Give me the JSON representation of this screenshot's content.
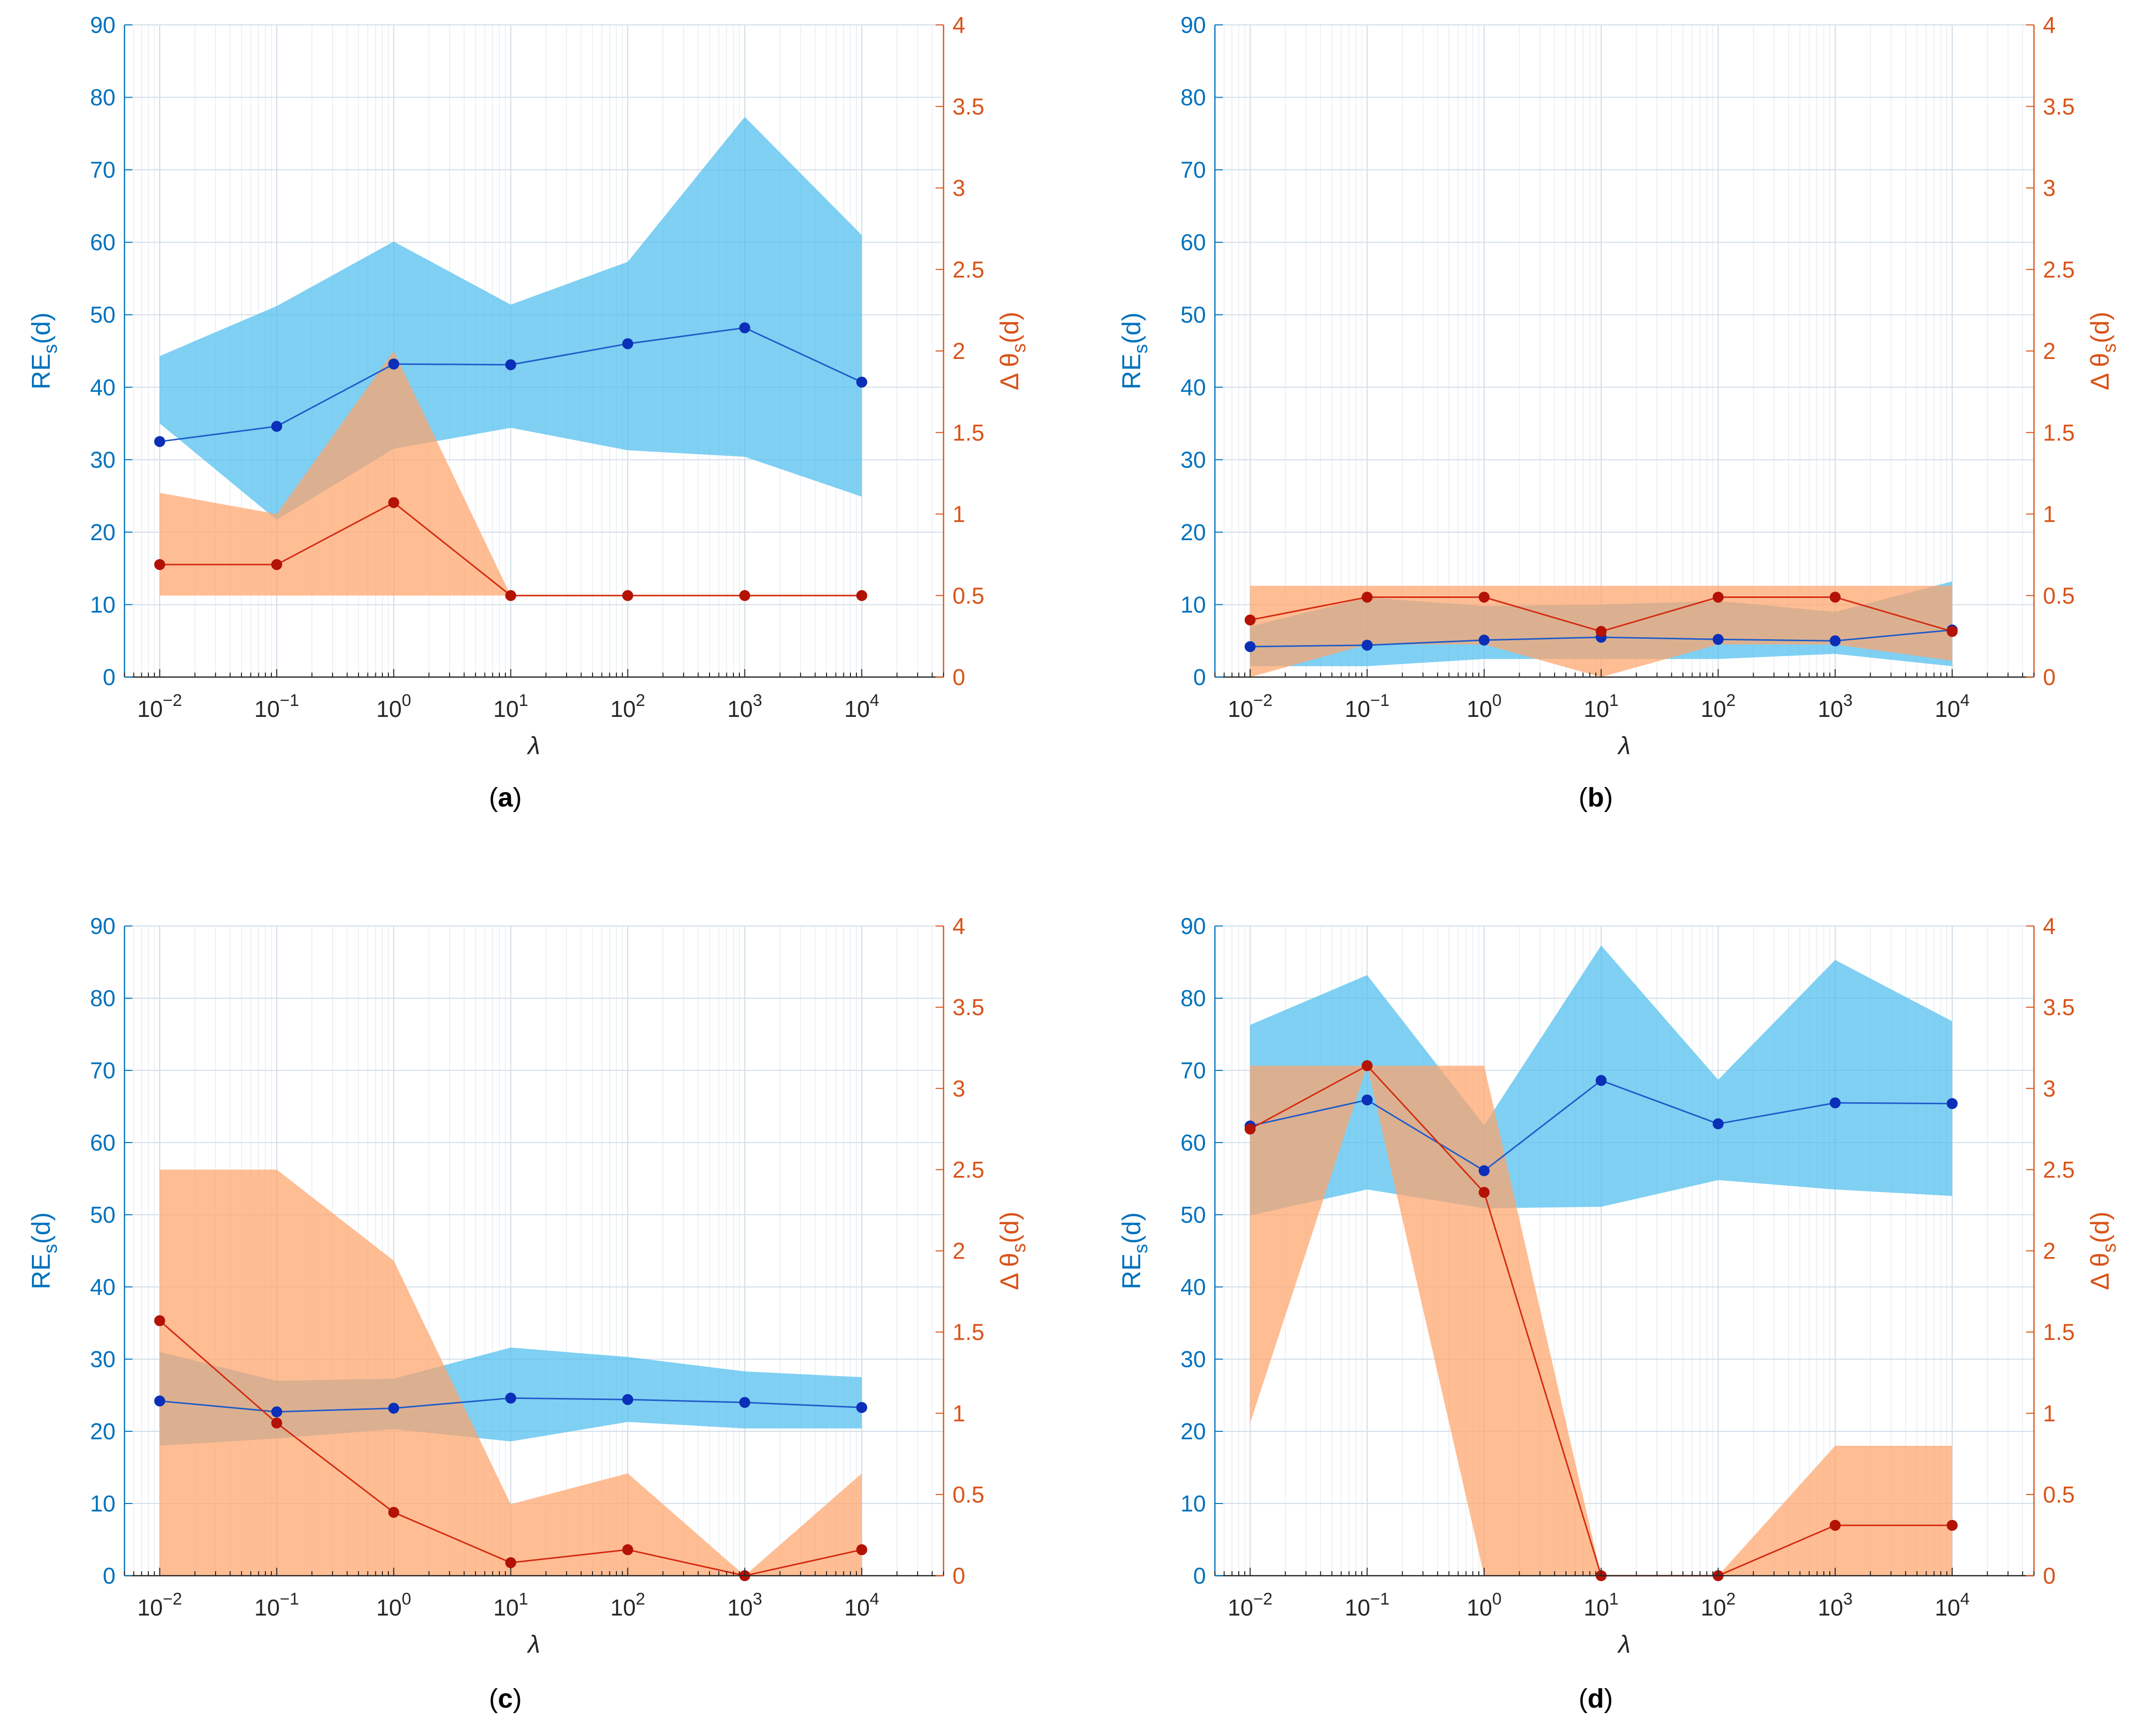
{
  "colors": {
    "left_axis": "#0072BD",
    "right_axis": "#D95319",
    "blue_band": "#4DBEEE",
    "orange_band": "#FFA46B",
    "blue_line": "#1F5BC9",
    "blue_marker": "#0B2FB8",
    "red_line": "#D42A0F",
    "red_marker": "#B31205",
    "grid": "#dfe8ef",
    "axis_dark": "#262626"
  },
  "common": {
    "left_ylabel_main": "RE",
    "left_ylabel_sub": "s",
    "left_ylabel_tail": "(d)",
    "right_ylabel_main": "Δ θ",
    "right_ylabel_sub": "s",
    "right_ylabel_tail": "(d)",
    "xlabel": "λ",
    "left_ticks": [
      "0",
      "10",
      "20",
      "30",
      "40",
      "50",
      "60",
      "70",
      "80",
      "90"
    ],
    "right_ticks": [
      "0",
      "0.5",
      "1",
      "1.5",
      "2",
      "2.5",
      "3",
      "3.5",
      "4"
    ],
    "x_tick_base": "10",
    "x_tick_exponents": [
      "−2",
      "−1",
      "0",
      "1",
      "2",
      "3",
      "4"
    ]
  },
  "chart_data": [
    {
      "type": "line",
      "label": "a",
      "x": [
        0.01,
        0.1,
        1,
        10,
        100,
        1000,
        10000
      ],
      "xscale": "log",
      "xlim": [
        0.005,
        50000
      ],
      "left_ylim": [
        0,
        90
      ],
      "right_ylim": [
        0,
        4
      ],
      "series": [
        {
          "name": "RE_s(d)",
          "axis": "left",
          "values": [
            32.5,
            34.6,
            43.2,
            43.1,
            46.0,
            48.2,
            40.7
          ],
          "band_upper": [
            44.3,
            51.2,
            60.1,
            51.4,
            57.3,
            77.3,
            61.0
          ],
          "band_lower": [
            35.0,
            21.7,
            31.5,
            34.4,
            31.3,
            30.4,
            24.9
          ]
        },
        {
          "name": "Δθ_s(d)",
          "axis": "right",
          "values": [
            0.69,
            0.69,
            1.07,
            0.5,
            0.5,
            0.5,
            0.5
          ],
          "band_upper": [
            1.13,
            1.0,
            2.0,
            0.5,
            0.5,
            0.5,
            0.5
          ],
          "band_lower": [
            0.5,
            0.5,
            0.5,
            0.5,
            0.5,
            0.5,
            0.5
          ]
        }
      ]
    },
    {
      "type": "line",
      "label": "b",
      "x": [
        0.01,
        0.1,
        1,
        10,
        100,
        1000,
        10000
      ],
      "xscale": "log",
      "xlim": [
        0.005,
        50000
      ],
      "left_ylim": [
        0,
        90
      ],
      "right_ylim": [
        0,
        4
      ],
      "series": [
        {
          "name": "RE_s(d)",
          "axis": "left",
          "values": [
            4.2,
            4.4,
            5.1,
            5.5,
            5.2,
            5.0,
            6.5
          ],
          "band_upper": [
            7.0,
            11.0,
            9.8,
            10.0,
            10.5,
            9.0,
            13.2
          ],
          "band_lower": [
            1.5,
            1.5,
            2.5,
            2.5,
            2.5,
            3.2,
            1.5
          ]
        },
        {
          "name": "Δθ_s(d)",
          "axis": "right",
          "values": [
            0.35,
            0.49,
            0.49,
            0.28,
            0.49,
            0.49,
            0.28
          ],
          "band_upper": [
            0.56,
            0.56,
            0.56,
            0.56,
            0.56,
            0.56,
            0.56
          ],
          "band_lower": [
            0.0,
            0.2,
            0.2,
            0.0,
            0.2,
            0.2,
            0.1
          ]
        }
      ]
    },
    {
      "type": "line",
      "label": "c",
      "x": [
        0.01,
        0.1,
        1,
        10,
        100,
        1000,
        10000
      ],
      "xscale": "log",
      "xlim": [
        0.005,
        50000
      ],
      "left_ylim": [
        0,
        90
      ],
      "right_ylim": [
        0,
        4
      ],
      "series": [
        {
          "name": "RE_s(d)",
          "axis": "left",
          "values": [
            24.2,
            22.7,
            23.2,
            24.6,
            24.4,
            24.0,
            23.3
          ],
          "band_upper": [
            31.0,
            27.0,
            27.3,
            31.6,
            30.3,
            28.3,
            27.5
          ],
          "band_lower": [
            18.0,
            19.0,
            20.3,
            18.6,
            21.3,
            20.4,
            20.4
          ]
        },
        {
          "name": "Δθ_s(d)",
          "axis": "right",
          "values": [
            1.57,
            0.94,
            0.39,
            0.08,
            0.16,
            0.0,
            0.16
          ],
          "band_upper": [
            2.5,
            2.5,
            1.94,
            0.44,
            0.63,
            0.0,
            0.63
          ],
          "band_lower": [
            0.0,
            0.0,
            0.0,
            0.0,
            0.0,
            0.0,
            0.0
          ]
        }
      ]
    },
    {
      "type": "line",
      "label": "d",
      "x": [
        0.01,
        0.1,
        1,
        10,
        100,
        1000,
        10000
      ],
      "xscale": "log",
      "xlim": [
        0.005,
        50000
      ],
      "left_ylim": [
        0,
        90
      ],
      "right_ylim": [
        0,
        4
      ],
      "series": [
        {
          "name": "RE_s(d)",
          "axis": "left",
          "values": [
            62.3,
            65.9,
            56.1,
            68.6,
            62.6,
            65.5,
            65.4
          ],
          "band_upper": [
            76.3,
            83.2,
            62.4,
            87.3,
            68.7,
            85.3,
            76.8
          ],
          "band_lower": [
            49.9,
            53.5,
            50.9,
            51.1,
            54.8,
            53.5,
            52.6
          ]
        },
        {
          "name": "Δθ_s(d)",
          "axis": "right",
          "values": [
            2.75,
            3.14,
            2.36,
            0.0,
            0.0,
            0.31,
            0.31
          ],
          "band_upper": [
            3.14,
            3.14,
            3.14,
            0.0,
            0.0,
            0.8,
            0.8
          ],
          "band_lower": [
            0.94,
            3.14,
            0.0,
            0.0,
            0.0,
            0.0,
            0.0
          ]
        }
      ]
    }
  ]
}
